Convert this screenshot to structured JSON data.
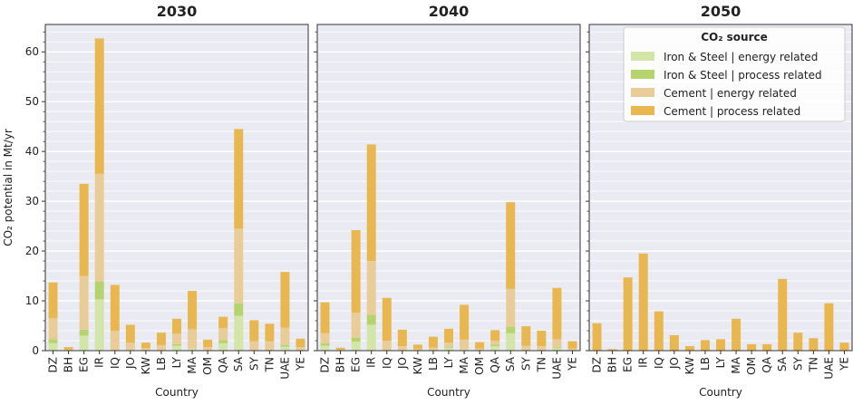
{
  "chart_data": [
    {
      "type": "bar",
      "stacked": true,
      "title": "2030",
      "ylabel": "CO₂ potential in Mt/yr",
      "xlabel": "Country",
      "categories": [
        "DZ",
        "BH",
        "EG",
        "IR",
        "IQ",
        "JO",
        "KW",
        "LB",
        "LY",
        "MA",
        "OM",
        "QA",
        "SA",
        "SY",
        "TN",
        "UAE",
        "YE"
      ],
      "series": [
        {
          "color": "#d3e5a8",
          "values": [
            1.5,
            0,
            3,
            10.3,
            0,
            0,
            0,
            0,
            1,
            0.4,
            0,
            1.5,
            7,
            0,
            0,
            0.8,
            0
          ]
        },
        {
          "color": "#b6d46e",
          "values": [
            0.8,
            0,
            1.2,
            3.6,
            0,
            0,
            0,
            0,
            0.3,
            0,
            0,
            0.6,
            2.5,
            0,
            0,
            0.3,
            0
          ]
        },
        {
          "color": "#e9cd98",
          "values": [
            4.2,
            0.2,
            10.8,
            21.6,
            4,
            1.6,
            0.5,
            1.1,
            2.1,
            3.9,
            0.7,
            2.4,
            15,
            1.9,
            1.9,
            3.5,
            0.7
          ]
        },
        {
          "color": "#e8b74f",
          "values": [
            7.2,
            0.5,
            18.5,
            27.2,
            9.2,
            3.6,
            1.1,
            2.5,
            3,
            7.7,
            1.5,
            2.3,
            20,
            4.2,
            3.5,
            11.2,
            1.7
          ]
        }
      ],
      "ylim": [
        0,
        65.5
      ],
      "yticks": [
        0,
        10,
        20,
        30,
        40,
        50,
        60
      ],
      "yminorticks": [
        2,
        4,
        6,
        8,
        12,
        14,
        16,
        18,
        22,
        24,
        26,
        28,
        32,
        34,
        36,
        38,
        42,
        44,
        46,
        48,
        52,
        54,
        56,
        58,
        62,
        64
      ],
      "grid": true
    },
    {
      "type": "bar",
      "stacked": true,
      "title": "2040",
      "xlabel": "Country",
      "categories": [
        "DZ",
        "BH",
        "EG",
        "IR",
        "IQ",
        "JO",
        "KW",
        "LB",
        "LY",
        "MA",
        "OM",
        "QA",
        "SA",
        "SY",
        "TN",
        "UAE",
        "YE"
      ],
      "series": [
        {
          "color": "#d3e5a8",
          "values": [
            1,
            0,
            1.8,
            5.2,
            0,
            0,
            0,
            0,
            0.6,
            0.3,
            0,
            0.9,
            3.5,
            0,
            0,
            0.5,
            0
          ]
        },
        {
          "color": "#b6d46e",
          "values": [
            0.5,
            0,
            0.8,
            2,
            0,
            0,
            0,
            0,
            0.2,
            0,
            0,
            0.3,
            1.3,
            0,
            0,
            0.2,
            0
          ]
        },
        {
          "color": "#e9cd98",
          "values": [
            2,
            0.2,
            5,
            10.8,
            2,
            0.9,
            0.3,
            0.6,
            0.8,
            1.9,
            0.4,
            0.8,
            7.6,
            1,
            0.9,
            1.6,
            0.4
          ]
        },
        {
          "color": "#e8b74f",
          "values": [
            6.2,
            0.4,
            16.6,
            23.4,
            8.6,
            3.3,
            0.9,
            2.2,
            2.8,
            7,
            1.3,
            2.1,
            17.4,
            3.9,
            3.1,
            10.3,
            1.5
          ]
        }
      ],
      "ylim": [
        0,
        65.5
      ],
      "grid": true
    },
    {
      "type": "bar",
      "stacked": true,
      "title": "2050",
      "xlabel": "Country",
      "categories": [
        "DZ",
        "BH",
        "EG",
        "IR",
        "IQ",
        "JO",
        "KW",
        "LB",
        "LY",
        "MA",
        "OM",
        "QA",
        "SA",
        "SY",
        "TN",
        "UAE",
        "YE"
      ],
      "series": [
        {
          "name": "Iron & Steel | energy related",
          "color": "#d3e5a8",
          "values": [
            0,
            0,
            0,
            0,
            0,
            0,
            0,
            0,
            0,
            0,
            0,
            0,
            0,
            0,
            0,
            0,
            0
          ]
        },
        {
          "name": "Iron & Steel | process related",
          "color": "#b6d46e",
          "values": [
            0,
            0,
            0,
            0,
            0,
            0,
            0,
            0,
            0,
            0,
            0,
            0,
            0,
            0,
            0,
            0,
            0
          ]
        },
        {
          "name": "Cement | energy related",
          "color": "#e9cd98",
          "values": [
            0,
            0,
            0,
            0,
            0,
            0,
            0,
            0,
            0,
            0,
            0,
            0,
            0,
            0,
            0,
            0,
            0
          ]
        },
        {
          "name": "Cement | process related",
          "color": "#e8b74f",
          "values": [
            5.5,
            0.3,
            14.7,
            19.5,
            7.9,
            3.1,
            0.9,
            2.1,
            2.3,
            6.4,
            1.3,
            1.3,
            14.4,
            3.6,
            2.5,
            9.5,
            1.6
          ]
        }
      ],
      "ylim": [
        0,
        65.5
      ],
      "grid": true,
      "legend": "upper right",
      "legend_title": "CO₂ source"
    }
  ]
}
